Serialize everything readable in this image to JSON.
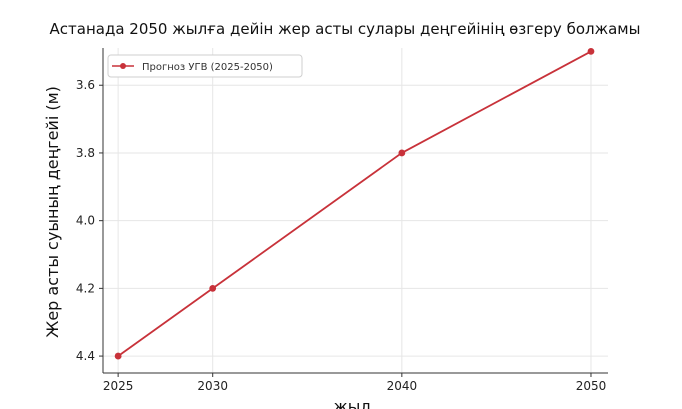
{
  "chart_data": {
    "type": "line",
    "title": "Астанада 2050 жылға дейін жер асты сулары деңгейінің өзгеру болжамы",
    "xlabel": "жыл",
    "ylabel": "Жер асты суының деңгейі (м)",
    "x": [
      2025,
      2030,
      2040,
      2050
    ],
    "x_ticks": [
      2025,
      2030,
      2040,
      2050
    ],
    "y_ticks": [
      3.6,
      3.8,
      4.0,
      4.2,
      4.4
    ],
    "y_tick_labels": [
      "3.6",
      "3.8",
      "4.0",
      "4.2",
      "4.4"
    ],
    "xlim": [
      2024.2,
      2050.9
    ],
    "ylim": [
      4.45,
      3.49
    ],
    "y_inverted": true,
    "grid": true,
    "legend_position": "top-left",
    "series": [
      {
        "name": "Прогноз УГВ (2025-2050)",
        "color": "#c8323a",
        "values": [
          4.4,
          4.2,
          3.8,
          3.5
        ]
      }
    ]
  }
}
